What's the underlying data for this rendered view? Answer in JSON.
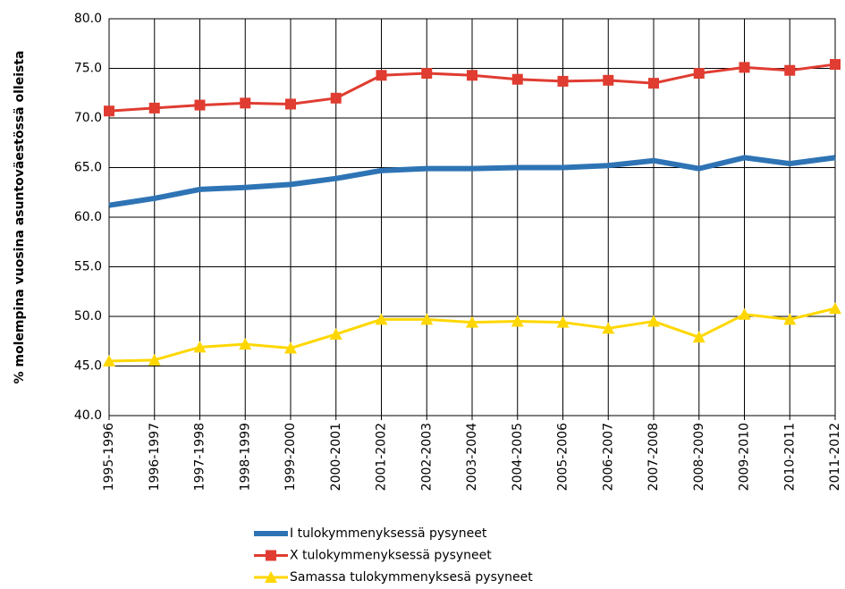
{
  "chart_data": {
    "type": "line",
    "ylabel": "% molempina vuosina asuntoväestössä  olleista",
    "categories": [
      "1995-1996",
      "1996-1997",
      "1997-1998",
      "1998-1999",
      "1999-2000",
      "2000-2001",
      "2001-2002",
      "2002-2003",
      "2003-2004",
      "2004-2005",
      "2005-2006",
      "2006-2007",
      "2007-2008",
      "2008-2009",
      "2009-2010",
      "2010-2011",
      "2011-2012"
    ],
    "series": [
      {
        "name": "I tulokymmenyksessä pysyneet",
        "color": "#2e74b5",
        "marker": "none",
        "values": [
          61.2,
          61.9,
          62.8,
          63.0,
          63.3,
          63.9,
          64.7,
          64.9,
          64.9,
          65.0,
          65.0,
          65.2,
          65.7,
          64.9,
          66.0,
          65.4,
          66.0
        ]
      },
      {
        "name": "X tulokymmenyksessä pysyneet",
        "color": "#e03c31",
        "marker": "square",
        "values": [
          70.7,
          71.0,
          71.3,
          71.5,
          71.4,
          72.0,
          74.3,
          74.5,
          74.3,
          73.9,
          73.7,
          73.8,
          73.5,
          74.5,
          75.1,
          74.8,
          75.4
        ]
      },
      {
        "name": "Samassa tulokymmenyksesä pysyneet",
        "color": "#ffd700",
        "marker": "triangle",
        "values": [
          45.5,
          45.6,
          46.9,
          47.2,
          46.8,
          48.2,
          49.7,
          49.7,
          49.4,
          49.5,
          49.4,
          48.8,
          49.5,
          47.9,
          50.2,
          49.7,
          50.8
        ]
      }
    ],
    "ylim": [
      40,
      80
    ],
    "yticks": [
      {
        "value": 40,
        "label": "40.0"
      },
      {
        "value": 45,
        "label": "45.0"
      },
      {
        "value": 50,
        "label": "50.0"
      },
      {
        "value": 55,
        "label": "55.0"
      },
      {
        "value": 60,
        "label": "60.0"
      },
      {
        "value": 65,
        "label": "65.0"
      },
      {
        "value": 70,
        "label": "70.0"
      },
      {
        "value": 75,
        "label": "75.0"
      },
      {
        "value": 80,
        "label": "80.0"
      }
    ],
    "grid": true,
    "legend": "bottom"
  }
}
